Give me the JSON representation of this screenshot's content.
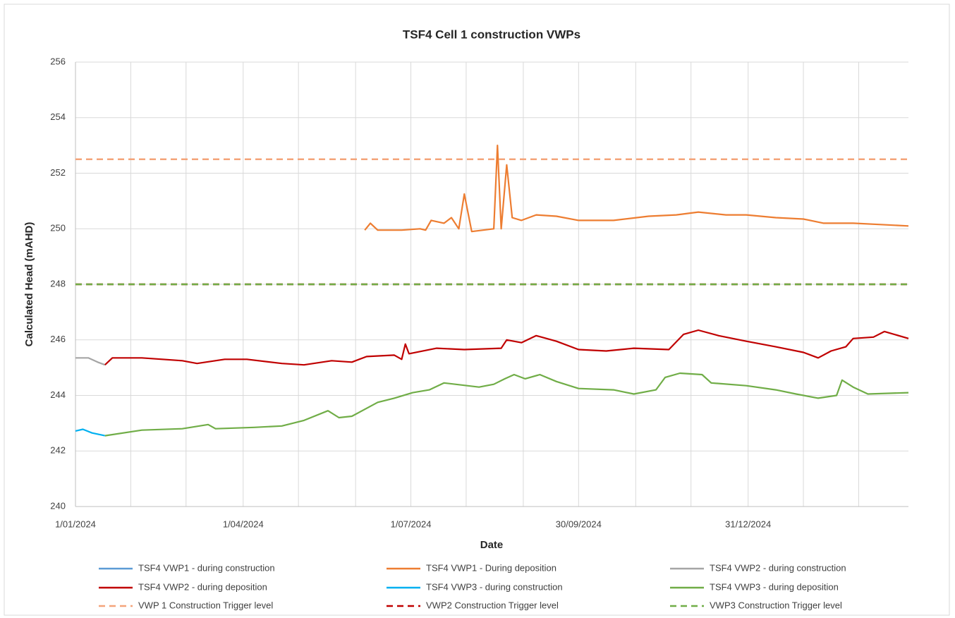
{
  "chart_data": {
    "type": "line",
    "title": "TSF4 Cell 1 construction VWPs",
    "x_label": "Date",
    "y_label": "Calculated Head (mAHD)",
    "xlim": [
      "2024-01-01",
      "2025-03-28"
    ],
    "xticks": [
      {
        "value": "2024-01-01",
        "label": "1/01/2024"
      },
      {
        "value": "2024-04-01",
        "label": "1/04/2024"
      },
      {
        "value": "2024-07-01",
        "label": "1/07/2024"
      },
      {
        "value": "2024-09-30",
        "label": "30/09/2024"
      },
      {
        "value": "2024-12-31",
        "label": "31/12/2024"
      }
    ],
    "x_minor_ticks": [
      "2024-01-31",
      "2024-03-01",
      "2024-05-01",
      "2024-06-01",
      "2024-07-31",
      "2024-08-31",
      "2024-10-31",
      "2024-11-30",
      "2025-01-30",
      "2025-03-01"
    ],
    "ylim": [
      240,
      256
    ],
    "yticks": [
      240,
      242,
      244,
      246,
      248,
      250,
      252,
      254,
      256
    ],
    "grid": true,
    "legend": "bottom",
    "series": [
      {
        "name": "TSF4 VWP1 - during construction",
        "color": "#5b9bd5",
        "dash": false,
        "x": [],
        "values": []
      },
      {
        "name": "TSF4 VWP1 - During deposition",
        "color": "#ed7d31",
        "dash": false,
        "x": [
          "2024-06-06",
          "2024-06-09",
          "2024-06-13",
          "2024-06-26",
          "2024-07-06",
          "2024-07-09",
          "2024-07-12",
          "2024-07-19",
          "2024-07-23",
          "2024-07-27",
          "2024-07-30",
          "2024-08-03",
          "2024-08-15",
          "2024-08-17",
          "2024-08-19",
          "2024-08-22",
          "2024-08-25",
          "2024-08-30",
          "2024-09-07",
          "2024-09-18",
          "2024-09-30",
          "2024-10-19",
          "2024-11-07",
          "2024-11-22",
          "2024-12-04",
          "2024-12-19",
          "2024-12-30",
          "2025-01-15",
          "2025-01-30",
          "2025-02-10",
          "2025-02-26",
          "2025-03-13",
          "2025-03-28"
        ],
        "values": [
          249.95,
          250.2,
          249.95,
          249.95,
          250.0,
          249.95,
          250.3,
          250.2,
          250.4,
          250.0,
          251.25,
          249.9,
          250.0,
          253.0,
          250.0,
          252.3,
          250.4,
          250.3,
          250.5,
          250.45,
          250.3,
          250.3,
          250.45,
          250.5,
          250.6,
          250.5,
          250.5,
          250.4,
          250.35,
          250.2,
          250.2,
          250.15,
          250.1
        ]
      },
      {
        "name": "TSF4 VWP2 - during construction",
        "color": "#a5a5a5",
        "dash": false,
        "x": [
          "2024-01-01",
          "2024-01-08",
          "2024-01-13",
          "2024-01-17"
        ],
        "values": [
          245.35,
          245.35,
          245.2,
          245.1
        ]
      },
      {
        "name": "TSF4 VWP2 - during deposition",
        "color": "#c00000",
        "dash": false,
        "x": [
          "2024-01-17",
          "2024-01-21",
          "2024-02-06",
          "2024-02-28",
          "2024-03-07",
          "2024-03-22",
          "2024-04-03",
          "2024-04-22",
          "2024-05-04",
          "2024-05-19",
          "2024-05-30",
          "2024-06-07",
          "2024-06-22",
          "2024-06-26",
          "2024-06-28",
          "2024-06-30",
          "2024-07-15",
          "2024-07-30",
          "2024-08-19",
          "2024-08-22",
          "2024-08-30",
          "2024-09-07",
          "2024-09-18",
          "2024-09-30",
          "2024-10-15",
          "2024-10-30",
          "2024-11-18",
          "2024-11-26",
          "2024-12-04",
          "2024-12-15",
          "2024-12-30",
          "2025-01-15",
          "2025-01-30",
          "2025-02-07",
          "2025-02-14",
          "2025-02-22",
          "2025-02-26",
          "2025-03-09",
          "2025-03-15",
          "2025-03-28"
        ],
        "values": [
          245.1,
          245.35,
          245.35,
          245.25,
          245.15,
          245.3,
          245.3,
          245.15,
          245.1,
          245.25,
          245.2,
          245.4,
          245.45,
          245.3,
          245.85,
          245.5,
          245.7,
          245.65,
          245.7,
          246.0,
          245.9,
          246.15,
          245.95,
          245.65,
          245.6,
          245.7,
          245.65,
          246.2,
          246.35,
          246.15,
          245.95,
          245.75,
          245.55,
          245.35,
          245.6,
          245.75,
          246.05,
          246.1,
          246.3,
          246.05
        ]
      },
      {
        "name": "TSF4 VWP3 - during construction",
        "color": "#00b0f0",
        "dash": false,
        "x": [
          "2024-01-01",
          "2024-01-05",
          "2024-01-10",
          "2024-01-17"
        ],
        "values": [
          242.72,
          242.78,
          242.65,
          242.55
        ]
      },
      {
        "name": "TSF4 VWP3 - during deposition",
        "color": "#70ad47",
        "dash": false,
        "x": [
          "2024-01-17",
          "2024-02-06",
          "2024-02-28",
          "2024-03-13",
          "2024-03-17",
          "2024-04-07",
          "2024-04-22",
          "2024-05-04",
          "2024-05-17",
          "2024-05-23",
          "2024-05-30",
          "2024-06-13",
          "2024-06-22",
          "2024-07-02",
          "2024-07-11",
          "2024-07-19",
          "2024-08-07",
          "2024-08-15",
          "2024-08-21",
          "2024-08-26",
          "2024-09-01",
          "2024-09-09",
          "2024-09-18",
          "2024-09-30",
          "2024-10-19",
          "2024-10-30",
          "2024-11-11",
          "2024-11-16",
          "2024-11-24",
          "2024-12-06",
          "2024-12-11",
          "2024-12-30",
          "2025-01-15",
          "2025-01-26",
          "2025-02-07",
          "2025-02-17",
          "2025-02-20",
          "2025-02-26",
          "2025-03-06",
          "2025-03-28"
        ],
        "values": [
          242.55,
          242.75,
          242.8,
          242.95,
          242.8,
          242.85,
          242.9,
          243.1,
          243.45,
          243.2,
          243.25,
          243.75,
          243.9,
          244.1,
          244.2,
          244.45,
          244.3,
          244.4,
          244.6,
          244.75,
          244.6,
          244.75,
          244.5,
          244.25,
          244.2,
          244.05,
          244.2,
          244.65,
          244.8,
          244.75,
          244.45,
          244.35,
          244.2,
          244.05,
          243.9,
          244.0,
          244.55,
          244.3,
          244.05,
          244.1
        ]
      },
      {
        "name": "VWP 1 Construction Trigger level",
        "color": "#f4a47a",
        "dash": true,
        "x": [
          "2024-01-01",
          "2025-03-28"
        ],
        "values": [
          252.5,
          252.5
        ]
      },
      {
        "name": "VWP2 Construction Trigger level",
        "color": "#c00000",
        "dash": true,
        "x": [
          "2024-01-01",
          "2025-03-28"
        ],
        "values": [
          248,
          248
        ]
      },
      {
        "name": "VWP3 Construction Trigger level",
        "color": "#70ad47",
        "dash": true,
        "x": [
          "2024-01-01",
          "2025-03-28"
        ],
        "values": [
          248,
          248
        ]
      }
    ]
  }
}
